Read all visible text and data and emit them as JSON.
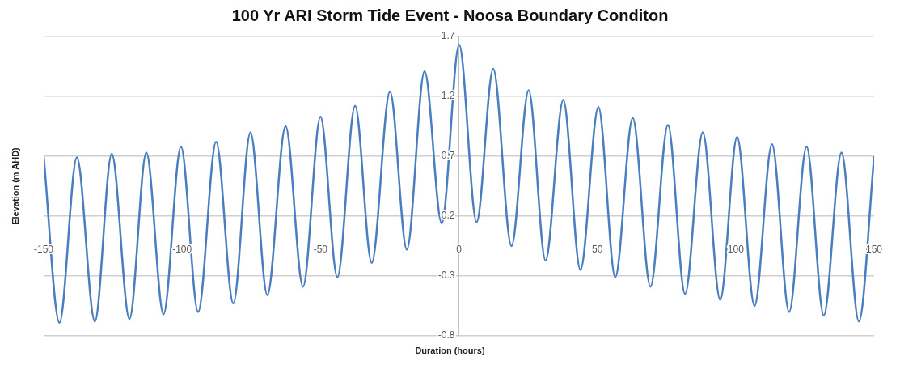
{
  "chart_data": {
    "type": "line",
    "title": "100 Yr ARI  Storm Tide Event - Noosa Boundary Conditon",
    "xlabel": "Duration (hours)",
    "ylabel": "Elevation (m AHD)",
    "xlim": [
      -150,
      150
    ],
    "xticks": [
      -150,
      -100,
      -50,
      0,
      50,
      100,
      150
    ],
    "ylim": [
      -0.8,
      1.7
    ],
    "yticks": [
      -0.8,
      -0.3,
      0.2,
      0.7,
      1.2,
      1.7
    ],
    "grid": "y",
    "series": [
      {
        "color": "#4a7ebf",
        "x": [
          -150,
          -144.3,
          -138.0,
          -131.5,
          -125.4,
          -119.0,
          -112.9,
          -106.7,
          -100.4,
          -94.2,
          -87.7,
          -81.5,
          -75.3,
          -69.2,
          -62.6,
          -56.3,
          -50.0,
          -43.9,
          -37.5,
          -31.5,
          -24.9,
          -18.8,
          -12.4,
          -6.2,
          0.1,
          6.4,
          12.4,
          19.0,
          25.2,
          31.3,
          37.7,
          43.9,
          50.4,
          56.5,
          62.8,
          69.2,
          75.5,
          81.7,
          88.1,
          94.4,
          100.5,
          106.8,
          113.1,
          119.3,
          125.6,
          131.8,
          138.2,
          144.5,
          150
        ],
        "values": [
          0.7,
          -0.69,
          0.69,
          -0.68,
          0.72,
          -0.66,
          0.73,
          -0.62,
          0.78,
          -0.6,
          0.82,
          -0.53,
          0.9,
          -0.46,
          0.95,
          -0.39,
          1.03,
          -0.31,
          1.12,
          -0.19,
          1.24,
          -0.08,
          1.41,
          0.14,
          1.63,
          0.15,
          1.43,
          -0.05,
          1.25,
          -0.17,
          1.17,
          -0.25,
          1.11,
          -0.31,
          1.02,
          -0.39,
          0.96,
          -0.45,
          0.9,
          -0.5,
          0.86,
          -0.55,
          0.8,
          -0.6,
          0.78,
          -0.63,
          0.73,
          -0.68,
          0.7
        ]
      }
    ]
  }
}
